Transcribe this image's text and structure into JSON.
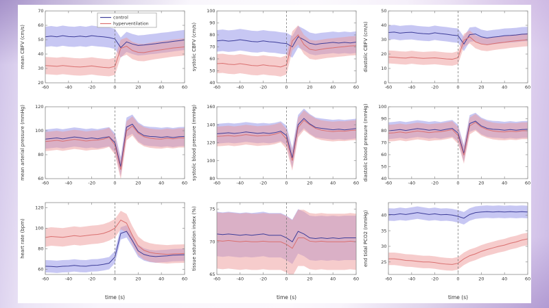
{
  "style": {
    "control_line": "#3d3d99",
    "control_band": "#8f8fe8",
    "hyper_line": "#d96f6f",
    "hyper_band": "#ee9a9a",
    "band_opacity": 0.5,
    "axis_color": "#8a8a8a",
    "text_color": "#333333",
    "zero_line_color": "#777777",
    "figure_background": "#ffffff"
  },
  "legend": {
    "entries": [
      "control",
      "hyperventilation"
    ]
  },
  "chart_data": {
    "type": "line",
    "xlabel": "time (s)",
    "xticks": [
      -60,
      -40,
      -20,
      0,
      20,
      40,
      60
    ],
    "x": [
      -60,
      -55,
      -50,
      -45,
      -40,
      -35,
      -30,
      -25,
      -20,
      -15,
      -10,
      -5,
      0,
      5,
      10,
      15,
      20,
      25,
      30,
      35,
      40,
      45,
      50,
      55,
      60
    ],
    "charts": [
      {
        "ylabel": "mean CBFV (cm/s)",
        "ylim": [
          20,
          70
        ],
        "yticks": [
          20,
          30,
          40,
          50,
          60,
          70
        ],
        "show_legend": true,
        "series": [
          {
            "name": "control",
            "band_halfwidth": 7,
            "mean": [
              52,
              52.5,
              52,
              52.8,
              52.2,
              52,
              52.5,
              52,
              52.8,
              52.3,
              52,
              51.5,
              50.5,
              44.5,
              48.5,
              47,
              46,
              46.3,
              46.8,
              47.2,
              47.8,
              48.2,
              48.8,
              49.3,
              49.8
            ]
          },
          {
            "name": "hyperventilation",
            "band_halfwidth": 6,
            "mean": [
              32,
              31.8,
              31.5,
              32,
              31.6,
              31.2,
              31,
              31.3,
              31.8,
              31.2,
              30.8,
              30.5,
              31.5,
              44,
              45.5,
              42.5,
              41.2,
              41,
              41.8,
              42.5,
              43,
              43.6,
              44.2,
              44.6,
              45
            ]
          }
        ]
      },
      {
        "ylabel": "systolic CBFV (cm/s)",
        "ylim": [
          40,
          100
        ],
        "yticks": [
          40,
          50,
          60,
          70,
          80,
          90,
          100
        ],
        "show_legend": false,
        "series": [
          {
            "name": "control",
            "band_halfwidth": 9,
            "mean": [
              75,
              75.5,
              74.8,
              75.2,
              76,
              75.3,
              74.5,
              74.2,
              75,
              74.3,
              74,
              73.2,
              72.8,
              70,
              78.5,
              76,
              73,
              72,
              72.8,
              73.2,
              73.8,
              73.2,
              73.8,
              73.3,
              74
            ]
          },
          {
            "name": "hyperventilation",
            "band_halfwidth": 8,
            "mean": [
              56,
              56.3,
              55.5,
              55.2,
              56,
              55.3,
              54.5,
              54.2,
              55,
              54.3,
              54,
              53.2,
              55,
              75,
              80,
              72,
              68,
              67.2,
              68,
              68.8,
              69.2,
              69.8,
              70.2,
              70.8,
              71
            ]
          }
        ]
      },
      {
        "ylabel": "diastolic CBFV (cm/s)",
        "ylim": [
          0,
          50
        ],
        "yticks": [
          0,
          10,
          20,
          30,
          40,
          50
        ],
        "show_legend": false,
        "series": [
          {
            "name": "control",
            "band_halfwidth": 5,
            "mean": [
              35,
              35.3,
              34.6,
              35,
              35.2,
              34.6,
              34.2,
              34,
              34.8,
              34.2,
              33.8,
              33.2,
              32.8,
              27,
              33.5,
              34,
              32,
              31.2,
              31.8,
              32.2,
              32.8,
              33,
              33.3,
              33.8,
              34
            ]
          },
          {
            "name": "hyperventilation",
            "band_halfwidth": 4.5,
            "mean": [
              18,
              17.8,
              17.4,
              17.2,
              17.8,
              17.3,
              17,
              17.2,
              17.4,
              17,
              16.6,
              16.4,
              17.5,
              29.5,
              32,
              28.5,
              27,
              26.5,
              27.2,
              27.8,
              28.2,
              28.8,
              29.2,
              29.6,
              30
            ]
          }
        ]
      },
      {
        "ylabel": "mean arterial pressure (mmHg)",
        "ylim": [
          60,
          120
        ],
        "yticks": [
          60,
          80,
          100,
          120
        ],
        "show_legend": false,
        "series": [
          {
            "name": "control",
            "band_halfwidth": 8,
            "mean": [
              93,
              93.5,
              94,
              93.2,
              94,
              94.8,
              94.2,
              93.4,
              94,
              93.3,
              94.2,
              95,
              90,
              70,
              103,
              105.5,
              99,
              96,
              95.2,
              95,
              94.4,
              95,
              94.3,
              95,
              95.2
            ]
          },
          {
            "name": "hyperventilation",
            "band_halfwidth": 8,
            "mean": [
              91,
              91.4,
              92,
              91.2,
              92,
              92.8,
              92.2,
              91.4,
              92,
              92.2,
              93,
              94.5,
              88,
              67.5,
              100,
              104,
              98,
              95,
              93.8,
              93.2,
              93,
              93.8,
              93.2,
              94,
              94
            ]
          }
        ]
      },
      {
        "ylabel": "systolic blood pressure (mmHg)",
        "ylim": [
          80,
          160
        ],
        "yticks": [
          80,
          100,
          120,
          140,
          160
        ],
        "show_legend": false,
        "series": [
          {
            "name": "control",
            "band_halfwidth": 11,
            "mean": [
              130,
              130.5,
              131,
              130.3,
              131,
              132,
              131.2,
              130.4,
              131,
              130.3,
              131.2,
              132.8,
              128,
              103,
              140,
              147,
              141,
              137,
              136,
              135.2,
              134.4,
              135,
              134.3,
              135,
              135.8
            ]
          },
          {
            "name": "hyperventilation",
            "band_halfwidth": 11,
            "mean": [
              127,
              127.4,
              128,
              127.2,
              128,
              129,
              128.2,
              127.4,
              128,
              128.2,
              129.5,
              131.5,
              124,
              100,
              137,
              145,
              140,
              136,
              134,
              133,
              132.4,
              133,
              132.8,
              133.6,
              134
            ]
          }
        ]
      },
      {
        "ylabel": "diastolic blood pressure (mmHg)",
        "ylim": [
          40,
          100
        ],
        "yticks": [
          40,
          50,
          60,
          70,
          80,
          90,
          100
        ],
        "show_legend": false,
        "series": [
          {
            "name": "control",
            "band_halfwidth": 7,
            "mean": [
              80,
              80.4,
              81,
              80.2,
              81,
              81.8,
              81.2,
              80.4,
              81,
              80.3,
              81.2,
              82,
              78,
              61,
              86,
              88,
              84,
              82,
              81.2,
              81,
              80.4,
              81,
              80.4,
              81,
              81.2
            ]
          },
          {
            "name": "hyperventilation",
            "band_halfwidth": 7,
            "mean": [
              78,
              78.3,
              79,
              78.2,
              79,
              79.8,
              79.2,
              78.4,
              79,
              79.2,
              80,
              81,
              76,
              59.5,
              84,
              87,
              83,
              81,
              79.8,
              79.2,
              79,
              79.6,
              79.2,
              80,
              80
            ]
          }
        ]
      },
      {
        "ylabel": "heart rate (bpm)",
        "ylim": [
          55,
          125
        ],
        "yticks": [
          60,
          80,
          100,
          120
        ],
        "show_legend": false,
        "series": [
          {
            "name": "control",
            "band_halfwidth": 6,
            "mean": [
              63,
              62.8,
              62.4,
              63,
              63.2,
              63.8,
              63.2,
              63,
              63.8,
              64,
              64.8,
              66,
              72,
              95,
              97,
              88,
              78,
              74.5,
              73,
              72.4,
              72.8,
              73.2,
              73.8,
              74,
              74.2
            ]
          },
          {
            "name": "hyperventilation",
            "band_halfwidth": 9,
            "mean": [
              91,
              92,
              91.6,
              91.2,
              92,
              92.8,
              92.2,
              92.8,
              93.6,
              94,
              95,
              97,
              100,
              108,
              105,
              93,
              83,
              78.5,
              76.5,
              75.5,
              75,
              74.6,
              75,
              75.2,
              75.4
            ]
          }
        ]
      },
      {
        "ylabel": "tissue saturation index (%)",
        "ylim": [
          65,
          76
        ],
        "yticks": [
          65,
          70,
          75
        ],
        "show_legend": false,
        "series": [
          {
            "name": "control",
            "band_halfwidth": 3.4,
            "mean": [
              71.2,
              71.1,
              71.2,
              71.1,
              71,
              71.1,
              71,
              71.1,
              71.2,
              71,
              71,
              71,
              70.6,
              70,
              71.6,
              71.2,
              70.6,
              70.5,
              70.6,
              70.5,
              70.6,
              70.5,
              70.6,
              70.6,
              70.6
            ]
          },
          {
            "name": "hyperventilation",
            "band_halfwidth": 4.3,
            "mean": [
              70.2,
              70.1,
              70.2,
              70.1,
              70,
              70.1,
              70,
              70,
              70.1,
              70,
              70,
              70,
              69.6,
              69,
              70.6,
              70.6,
              70.1,
              70,
              70.1,
              70,
              70,
              70,
              70,
              70.1,
              70
            ]
          }
        ]
      },
      {
        "ylabel": "end tidal PCO2 (mmHg)",
        "ylim": [
          21,
          44
        ],
        "yticks": [
          25,
          30,
          35,
          40
        ],
        "show_legend": false,
        "series": [
          {
            "name": "control",
            "band_halfwidth": 2,
            "mean": [
              40.2,
              40.1,
              40.4,
              40.2,
              40.5,
              40.8,
              40.5,
              40.2,
              40.4,
              40.1,
              40.2,
              40,
              39.6,
              39,
              40.2,
              40.8,
              41,
              41.1,
              41,
              41.1,
              41,
              41.1,
              41,
              41.1,
              41
            ]
          },
          {
            "name": "hyperventilation",
            "band_halfwidth": 2,
            "mean": [
              26,
              26,
              25.8,
              25.5,
              25.4,
              25.2,
              25,
              25,
              24.8,
              24.5,
              24.3,
              24.2,
              24.6,
              26,
              27,
              27.6,
              28.4,
              29,
              29.5,
              30,
              30.4,
              31,
              31.4,
              32,
              32.4
            ]
          }
        ]
      }
    ]
  }
}
